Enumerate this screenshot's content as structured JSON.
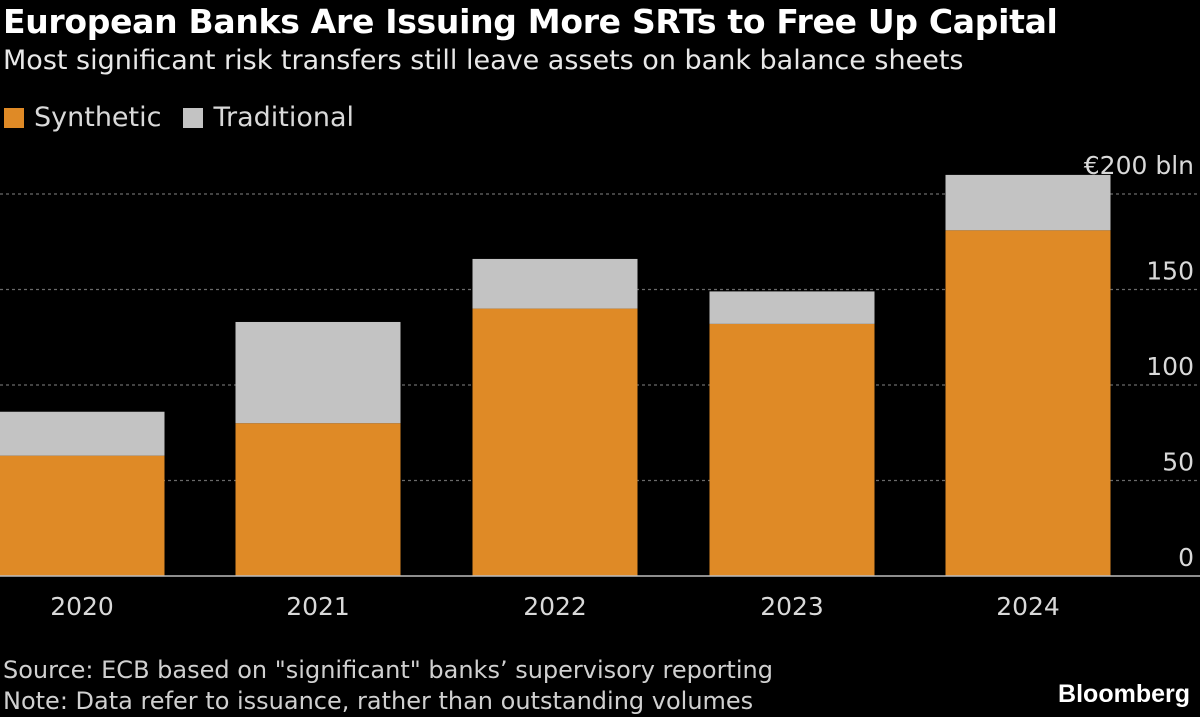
{
  "header": {
    "title": "European Banks Are Issuing More SRTs to Free Up Capital",
    "subtitle": "Most significant risk transfers still leave assets on bank balance sheets"
  },
  "legend": [
    {
      "label": "Synthetic",
      "color": "#df8a26"
    },
    {
      "label": "Traditional",
      "color": "#c3c3c3"
    }
  ],
  "footer": {
    "source": "Source: ECB based on \"significant\" banks’ supervisory reporting",
    "note": "Note: Data refer to issuance, rather than outstanding volumes",
    "brand": "Bloomberg"
  },
  "chart_data": {
    "type": "bar",
    "stacked": true,
    "categories": [
      "2020",
      "2021",
      "2022",
      "2023",
      "2024"
    ],
    "series": [
      {
        "name": "Synthetic",
        "color": "#df8a26",
        "values": [
          63,
          80,
          140,
          132,
          181
        ]
      },
      {
        "name": "Traditional",
        "color": "#c3c3c3",
        "values": [
          23,
          53,
          26,
          17,
          29
        ]
      }
    ],
    "ylim": [
      0,
      200
    ],
    "yticks": [
      0,
      50,
      100,
      150,
      200
    ],
    "ytick_labels": [
      "0",
      "50",
      "100",
      "150",
      "200"
    ],
    "y_unit_label": "€",
    "y_top_suffix": "bln",
    "grid": true,
    "legend_position": "top-left",
    "y_axis_position": "right"
  }
}
